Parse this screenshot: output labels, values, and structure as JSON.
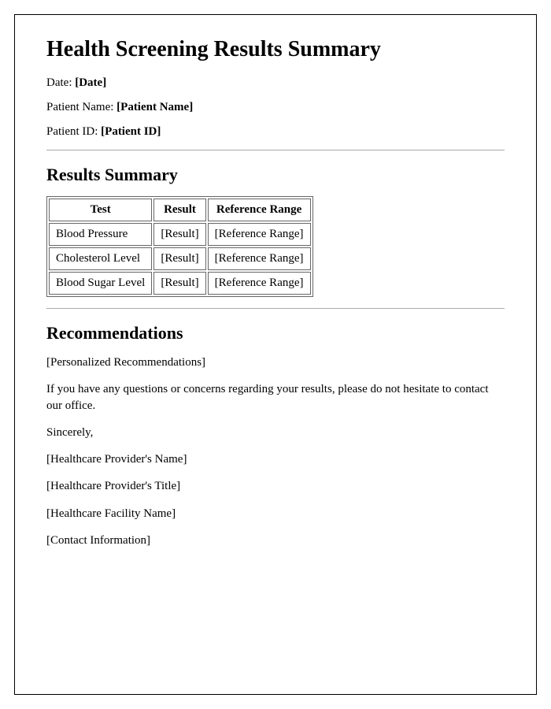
{
  "title": "Health Screening Results Summary",
  "meta": {
    "date_label": "Date: ",
    "date_value": "[Date]",
    "patient_name_label": "Patient Name: ",
    "patient_name_value": "[Patient Name]",
    "patient_id_label": "Patient ID: ",
    "patient_id_value": "[Patient ID]"
  },
  "results": {
    "heading": "Results Summary",
    "columns": [
      "Test",
      "Result",
      "Reference Range"
    ],
    "rows": [
      [
        "Blood Pressure",
        "[Result]",
        "[Reference Range]"
      ],
      [
        "Cholesterol Level",
        "[Result]",
        "[Reference Range]"
      ],
      [
        "Blood Sugar Level",
        "[Result]",
        "[Reference Range]"
      ]
    ]
  },
  "recommendations": {
    "heading": "Recommendations",
    "personalized": "[Personalized Recommendations]",
    "closing_note": "If you have any questions or concerns regarding your results, please do not hesitate to contact our office.",
    "signoff": "Sincerely,",
    "provider_name": "[Healthcare Provider's Name]",
    "provider_title": "[Healthcare Provider's Title]",
    "facility_name": "[Healthcare Facility Name]",
    "contact_info": "[Contact Information]"
  }
}
